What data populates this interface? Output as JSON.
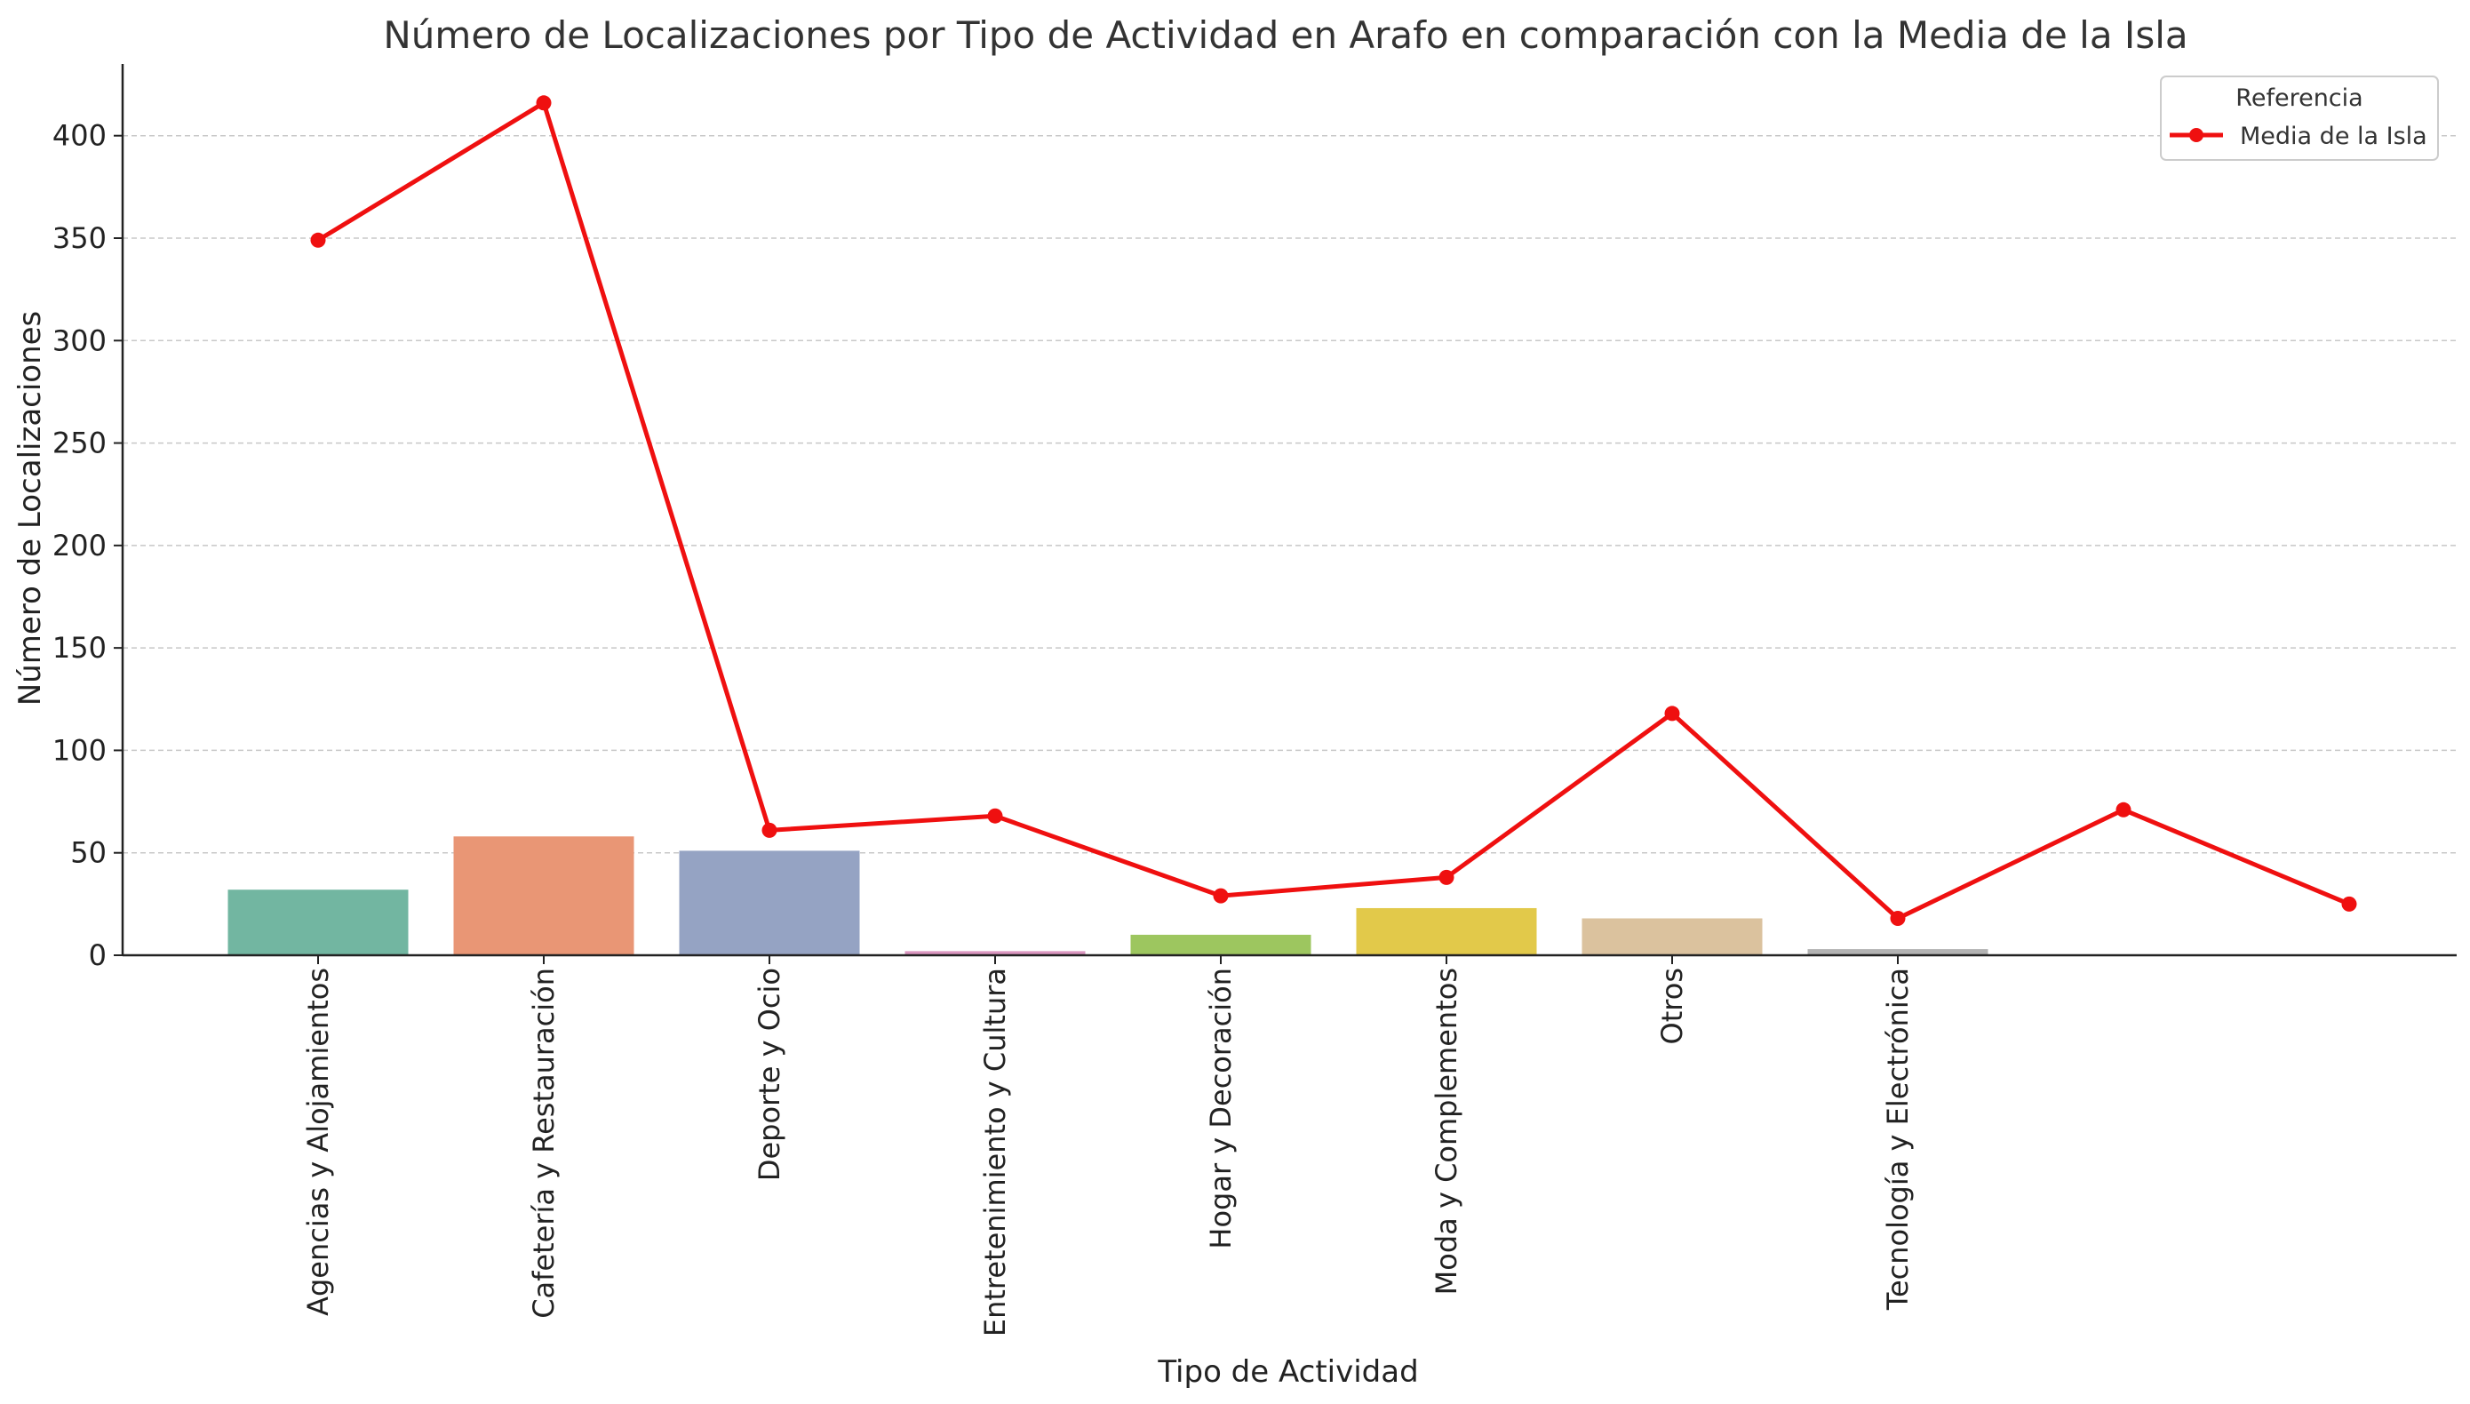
{
  "chart_data": {
    "type": "bar",
    "title": "Número de Localizaciones por Tipo de Actividad en Arafo en comparación con la Media de la Isla",
    "xlabel": "Tipo de Actividad",
    "ylabel": "Número de Localizaciones",
    "ylim": [
      0,
      435
    ],
    "yticks": [
      0,
      50,
      100,
      150,
      200,
      250,
      300,
      350,
      400
    ],
    "grid": "horizontal-dashed",
    "legend": {
      "title": "Referencia",
      "placement": "top-right"
    },
    "categories": [
      "Agencias y Alojamientos",
      "Cafetería y Restauración",
      "Deporte y Ocio",
      "Entretenimiento y Cultura",
      "Hogar y Decoración",
      "Moda y Complementos",
      "Otros",
      "Tecnología y Electrónica",
      "",
      ""
    ],
    "series": [
      {
        "kind": "bar",
        "values": [
          32,
          58,
          51,
          2,
          10,
          23,
          18,
          3,
          null,
          null
        ],
        "colors": [
          "#72b6a1",
          "#e99675",
          "#95a3c3",
          "#db96c0",
          "#9dc65f",
          "#e2c94a",
          "#dbc29e",
          "#b3b3b3"
        ]
      },
      {
        "kind": "line",
        "name": "Media de la Isla",
        "color": "#ef1010",
        "values": [
          349,
          416,
          61,
          68,
          29,
          38,
          118,
          18,
          71,
          25
        ]
      }
    ]
  }
}
